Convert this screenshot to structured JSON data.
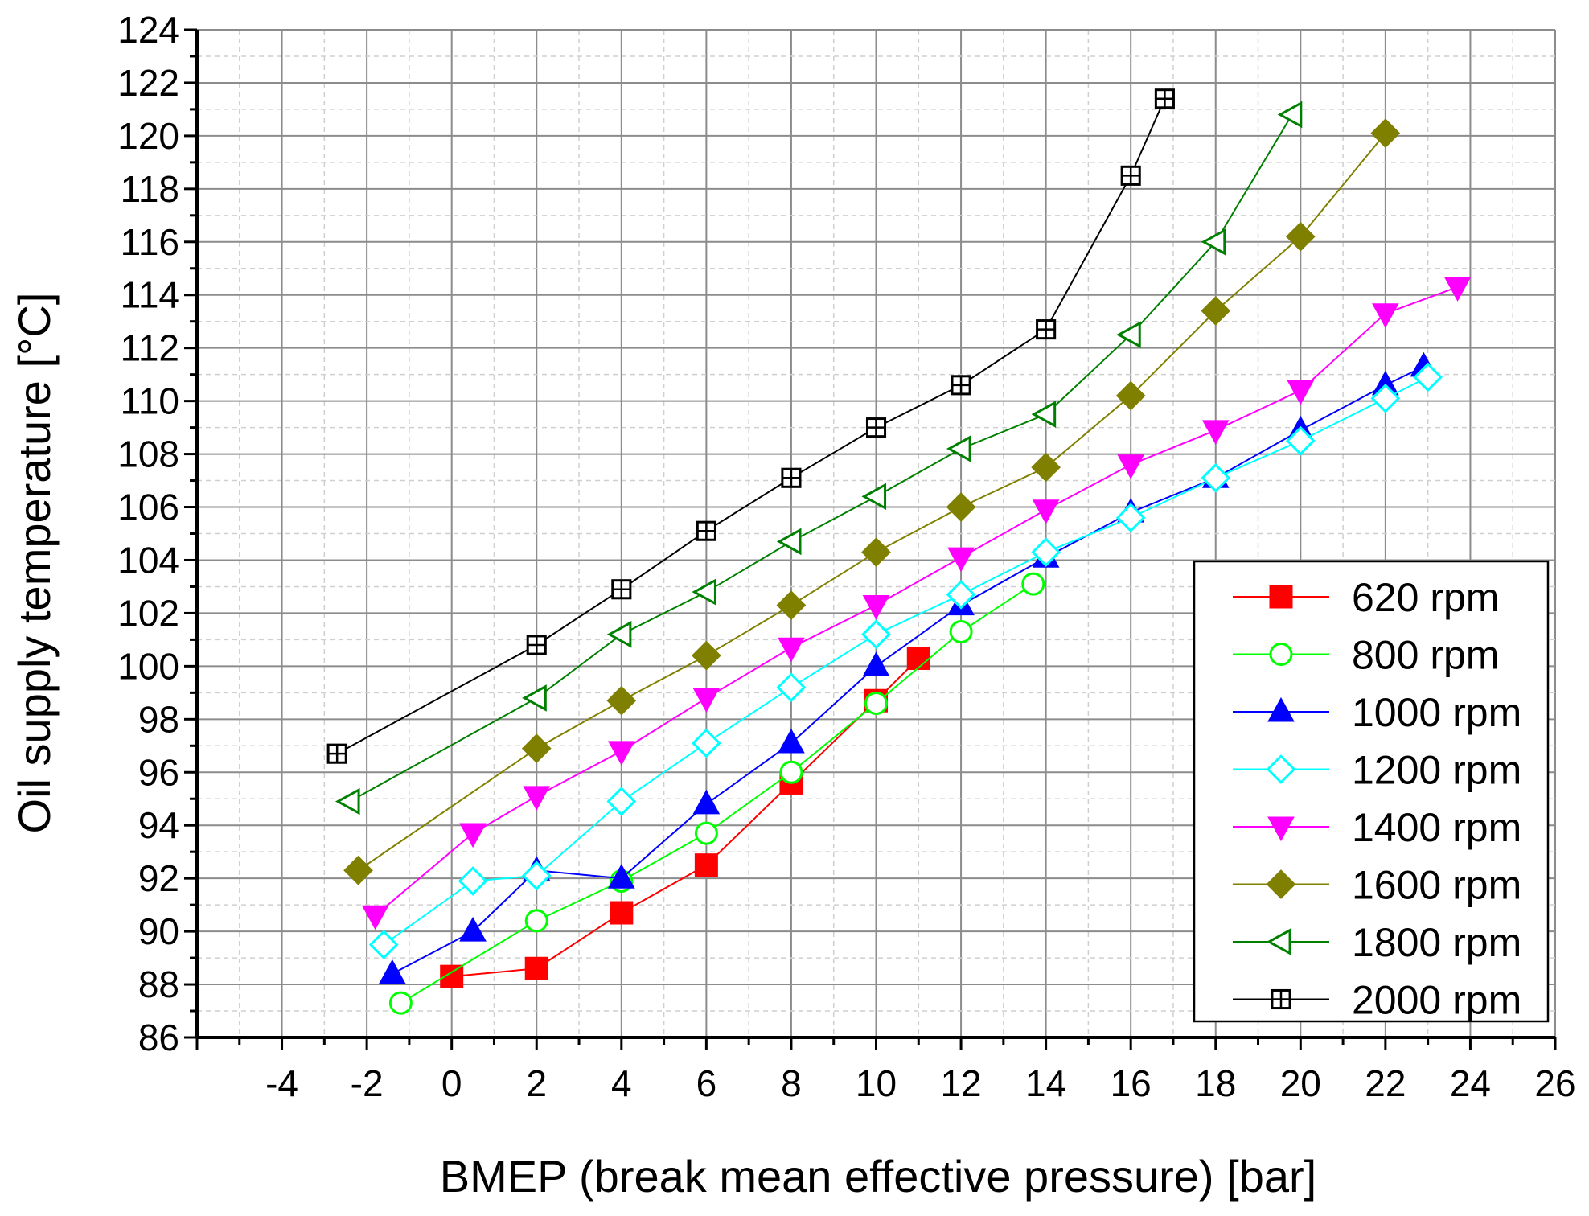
{
  "chart_data": {
    "type": "line",
    "title": "",
    "xlabel": "BMEP (break mean effective pressure) [bar]",
    "ylabel": "Oil supply temperature [°C]",
    "xlim": [
      -6,
      26
    ],
    "ylim": [
      86,
      124
    ],
    "x_ticks": [
      -4,
      -2,
      0,
      2,
      4,
      6,
      8,
      10,
      12,
      14,
      16,
      18,
      20,
      22,
      24,
      26
    ],
    "y_ticks": [
      86,
      88,
      90,
      92,
      94,
      96,
      98,
      100,
      102,
      104,
      106,
      108,
      110,
      112,
      114,
      116,
      118,
      120,
      122,
      124
    ],
    "grid": true,
    "legend_position": "bottom-right",
    "series": [
      {
        "name": "620 rpm",
        "color": "#ff0000",
        "marker": "square-filled",
        "x": [
          0.0,
          2.0,
          4.0,
          6.0,
          8.0,
          10.0,
          11.0
        ],
        "y": [
          88.3,
          88.6,
          90.7,
          92.5,
          95.6,
          98.7,
          100.3
        ]
      },
      {
        "name": "800 rpm",
        "color": "#00ff00",
        "marker": "circle-open",
        "x": [
          -1.2,
          2.0,
          4.0,
          6.0,
          8.0,
          10.0,
          12.0,
          13.7
        ],
        "y": [
          87.3,
          90.4,
          91.9,
          93.7,
          96.0,
          98.6,
          101.3,
          103.1
        ]
      },
      {
        "name": "1000 rpm",
        "color": "#0000ff",
        "marker": "triangle-up-filled",
        "x": [
          -1.4,
          0.5,
          2.0,
          4.0,
          6.0,
          8.0,
          10.0,
          12.0,
          14.0,
          16.0,
          18.0,
          20.0,
          22.0,
          22.9
        ],
        "y": [
          88.4,
          90.0,
          92.3,
          92.0,
          94.8,
          97.1,
          100.0,
          102.3,
          104.1,
          105.8,
          107.1,
          108.9,
          110.6,
          111.3
        ]
      },
      {
        "name": "1200 rpm",
        "color": "#00ffff",
        "marker": "diamond-open",
        "x": [
          -1.6,
          0.5,
          2.0,
          4.0,
          6.0,
          8.0,
          10.0,
          12.0,
          14.0,
          16.0,
          18.0,
          20.0,
          22.0,
          23.0
        ],
        "y": [
          89.5,
          91.9,
          92.1,
          94.9,
          97.1,
          99.2,
          101.2,
          102.7,
          104.3,
          105.6,
          107.1,
          108.5,
          110.1,
          110.9
        ]
      },
      {
        "name": "1400 rpm",
        "color": "#ff00ff",
        "marker": "triangle-down-filled",
        "x": [
          -1.8,
          0.5,
          2.0,
          4.0,
          6.0,
          8.0,
          10.0,
          12.0,
          14.0,
          16.0,
          18.0,
          20.0,
          22.0,
          23.7
        ],
        "y": [
          90.6,
          93.7,
          95.1,
          96.8,
          98.8,
          100.7,
          102.3,
          104.1,
          105.9,
          107.6,
          108.9,
          110.4,
          113.3,
          114.3
        ]
      },
      {
        "name": "1600 rpm",
        "color": "#808000",
        "marker": "diamond-filled",
        "x": [
          -2.2,
          2.0,
          4.0,
          6.0,
          8.0,
          10.0,
          12.0,
          14.0,
          16.0,
          18.0,
          20.0,
          22.0
        ],
        "y": [
          92.3,
          96.9,
          98.7,
          100.4,
          102.3,
          104.3,
          106.0,
          107.5,
          110.2,
          113.4,
          116.2,
          120.1
        ]
      },
      {
        "name": "1800 rpm",
        "color": "#008000",
        "marker": "triangle-left-open",
        "x": [
          -2.4,
          2.0,
          4.0,
          6.0,
          8.0,
          10.0,
          12.0,
          14.0,
          16.0,
          18.0,
          19.8
        ],
        "y": [
          94.9,
          98.8,
          101.2,
          102.8,
          104.7,
          106.4,
          108.2,
          109.5,
          112.5,
          116.0,
          120.8
        ]
      },
      {
        "name": "2000 rpm",
        "color": "#000000",
        "marker": "square-plus-open",
        "x": [
          -2.7,
          2.0,
          4.0,
          6.0,
          8.0,
          10.0,
          12.0,
          14.0,
          16.0,
          16.8
        ],
        "y": [
          96.7,
          100.8,
          102.9,
          105.1,
          107.1,
          109.0,
          110.6,
          112.7,
          118.5,
          121.4
        ]
      }
    ]
  }
}
